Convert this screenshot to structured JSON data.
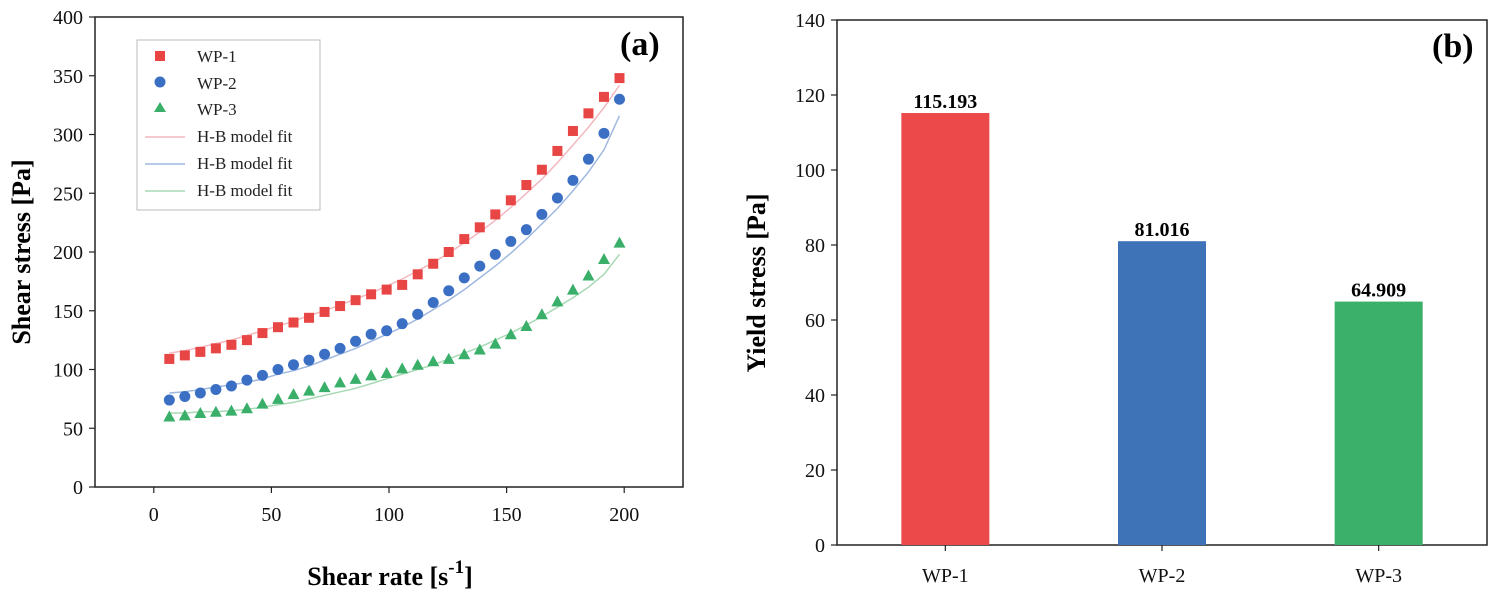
{
  "chart_data": [
    {
      "type": "scatter",
      "panel_label": "(a)",
      "title": "",
      "xlabel": "Shear rate [s",
      "xlabel_sup": "-1",
      "xlabel_end": "]",
      "ylabel": "Shear stress [Pa]",
      "xlim": [
        -25,
        225
      ],
      "ylim": [
        0,
        400
      ],
      "xticks": [
        0,
        50,
        100,
        150,
        200
      ],
      "yticks": [
        0,
        50,
        100,
        150,
        200,
        250,
        300,
        350,
        400
      ],
      "grid": false,
      "legend_position": "top-left",
      "x": [
        6.6,
        13.2,
        19.8,
        26.4,
        33,
        39.6,
        46.2,
        52.8,
        59.4,
        66,
        72.6,
        79.2,
        85.8,
        92.4,
        99,
        105.6,
        112.2,
        118.8,
        125.4,
        132,
        138.6,
        145.2,
        151.8,
        158.4,
        165,
        171.6,
        178.2,
        184.8,
        191.4,
        198
      ],
      "series": [
        {
          "name": "WP-1",
          "marker": "square",
          "color": "#e84545",
          "values": [
            109,
            112,
            115,
            118,
            121,
            125,
            131,
            136,
            140,
            144,
            149,
            154,
            159,
            164,
            168,
            172,
            181,
            190,
            200,
            211,
            221,
            232,
            244,
            257,
            270,
            286,
            303,
            318,
            332,
            348
          ]
        },
        {
          "name": "WP-2",
          "marker": "circle",
          "color": "#3b6fc4",
          "values": [
            74,
            77,
            80,
            83,
            86,
            91,
            95,
            100,
            104,
            108,
            113,
            118,
            124,
            130,
            133,
            139,
            147,
            157,
            167,
            178,
            188,
            198,
            209,
            219,
            232,
            246,
            261,
            279,
            301,
            330
          ]
        },
        {
          "name": "WP-3",
          "marker": "triangle",
          "color": "#3aaf6a",
          "values": [
            60,
            61,
            63,
            64,
            65,
            67,
            71,
            75,
            79,
            82,
            85,
            89,
            92,
            95,
            97,
            101,
            104,
            107,
            109,
            113,
            117,
            122,
            130,
            137,
            147,
            158,
            168,
            180,
            194,
            208
          ]
        }
      ],
      "fits": [
        {
          "name": "H-B model fit",
          "color": "#f2b8bf",
          "values": [
            114,
            116,
            119,
            122,
            125,
            129,
            133,
            137,
            141,
            146,
            150,
            155,
            160,
            165,
            171,
            177,
            184,
            191,
            199,
            208,
            217,
            227,
            238,
            250,
            262,
            276,
            291,
            306,
            323,
            342
          ]
        },
        {
          "name": "H-B model fit",
          "color": "#9fb8e0",
          "values": [
            80,
            81,
            83,
            85,
            87,
            89,
            92,
            96,
            99,
            103,
            108,
            113,
            118,
            124,
            130,
            136,
            143,
            151,
            159,
            168,
            178,
            188,
            199,
            211,
            224,
            237,
            252,
            268,
            287,
            316
          ]
        },
        {
          "name": "H-B model fit",
          "color": "#a8d9b5",
          "values": [
            63,
            63,
            64,
            64,
            65,
            66,
            68,
            70,
            72,
            75,
            78,
            81,
            84,
            88,
            92,
            96,
            100,
            104,
            109,
            114,
            119,
            125,
            131,
            138,
            145,
            153,
            161,
            170,
            181,
            198
          ]
        }
      ]
    },
    {
      "type": "bar",
      "panel_label": "(b)",
      "title": "",
      "xlabel": "",
      "ylabel": "Yield stress [Pa]",
      "ylim": [
        0,
        140
      ],
      "yticks": [
        0,
        20,
        40,
        60,
        80,
        100,
        120,
        140
      ],
      "categories": [
        "WP-1",
        "WP-2",
        "WP-3"
      ],
      "values": [
        115.193,
        81.016,
        64.909
      ],
      "value_labels": [
        "115.193",
        "81.016",
        "64.909"
      ],
      "colors": [
        "#ec4a4a",
        "#3f73b8",
        "#3ab06a"
      ],
      "grid": false
    }
  ]
}
